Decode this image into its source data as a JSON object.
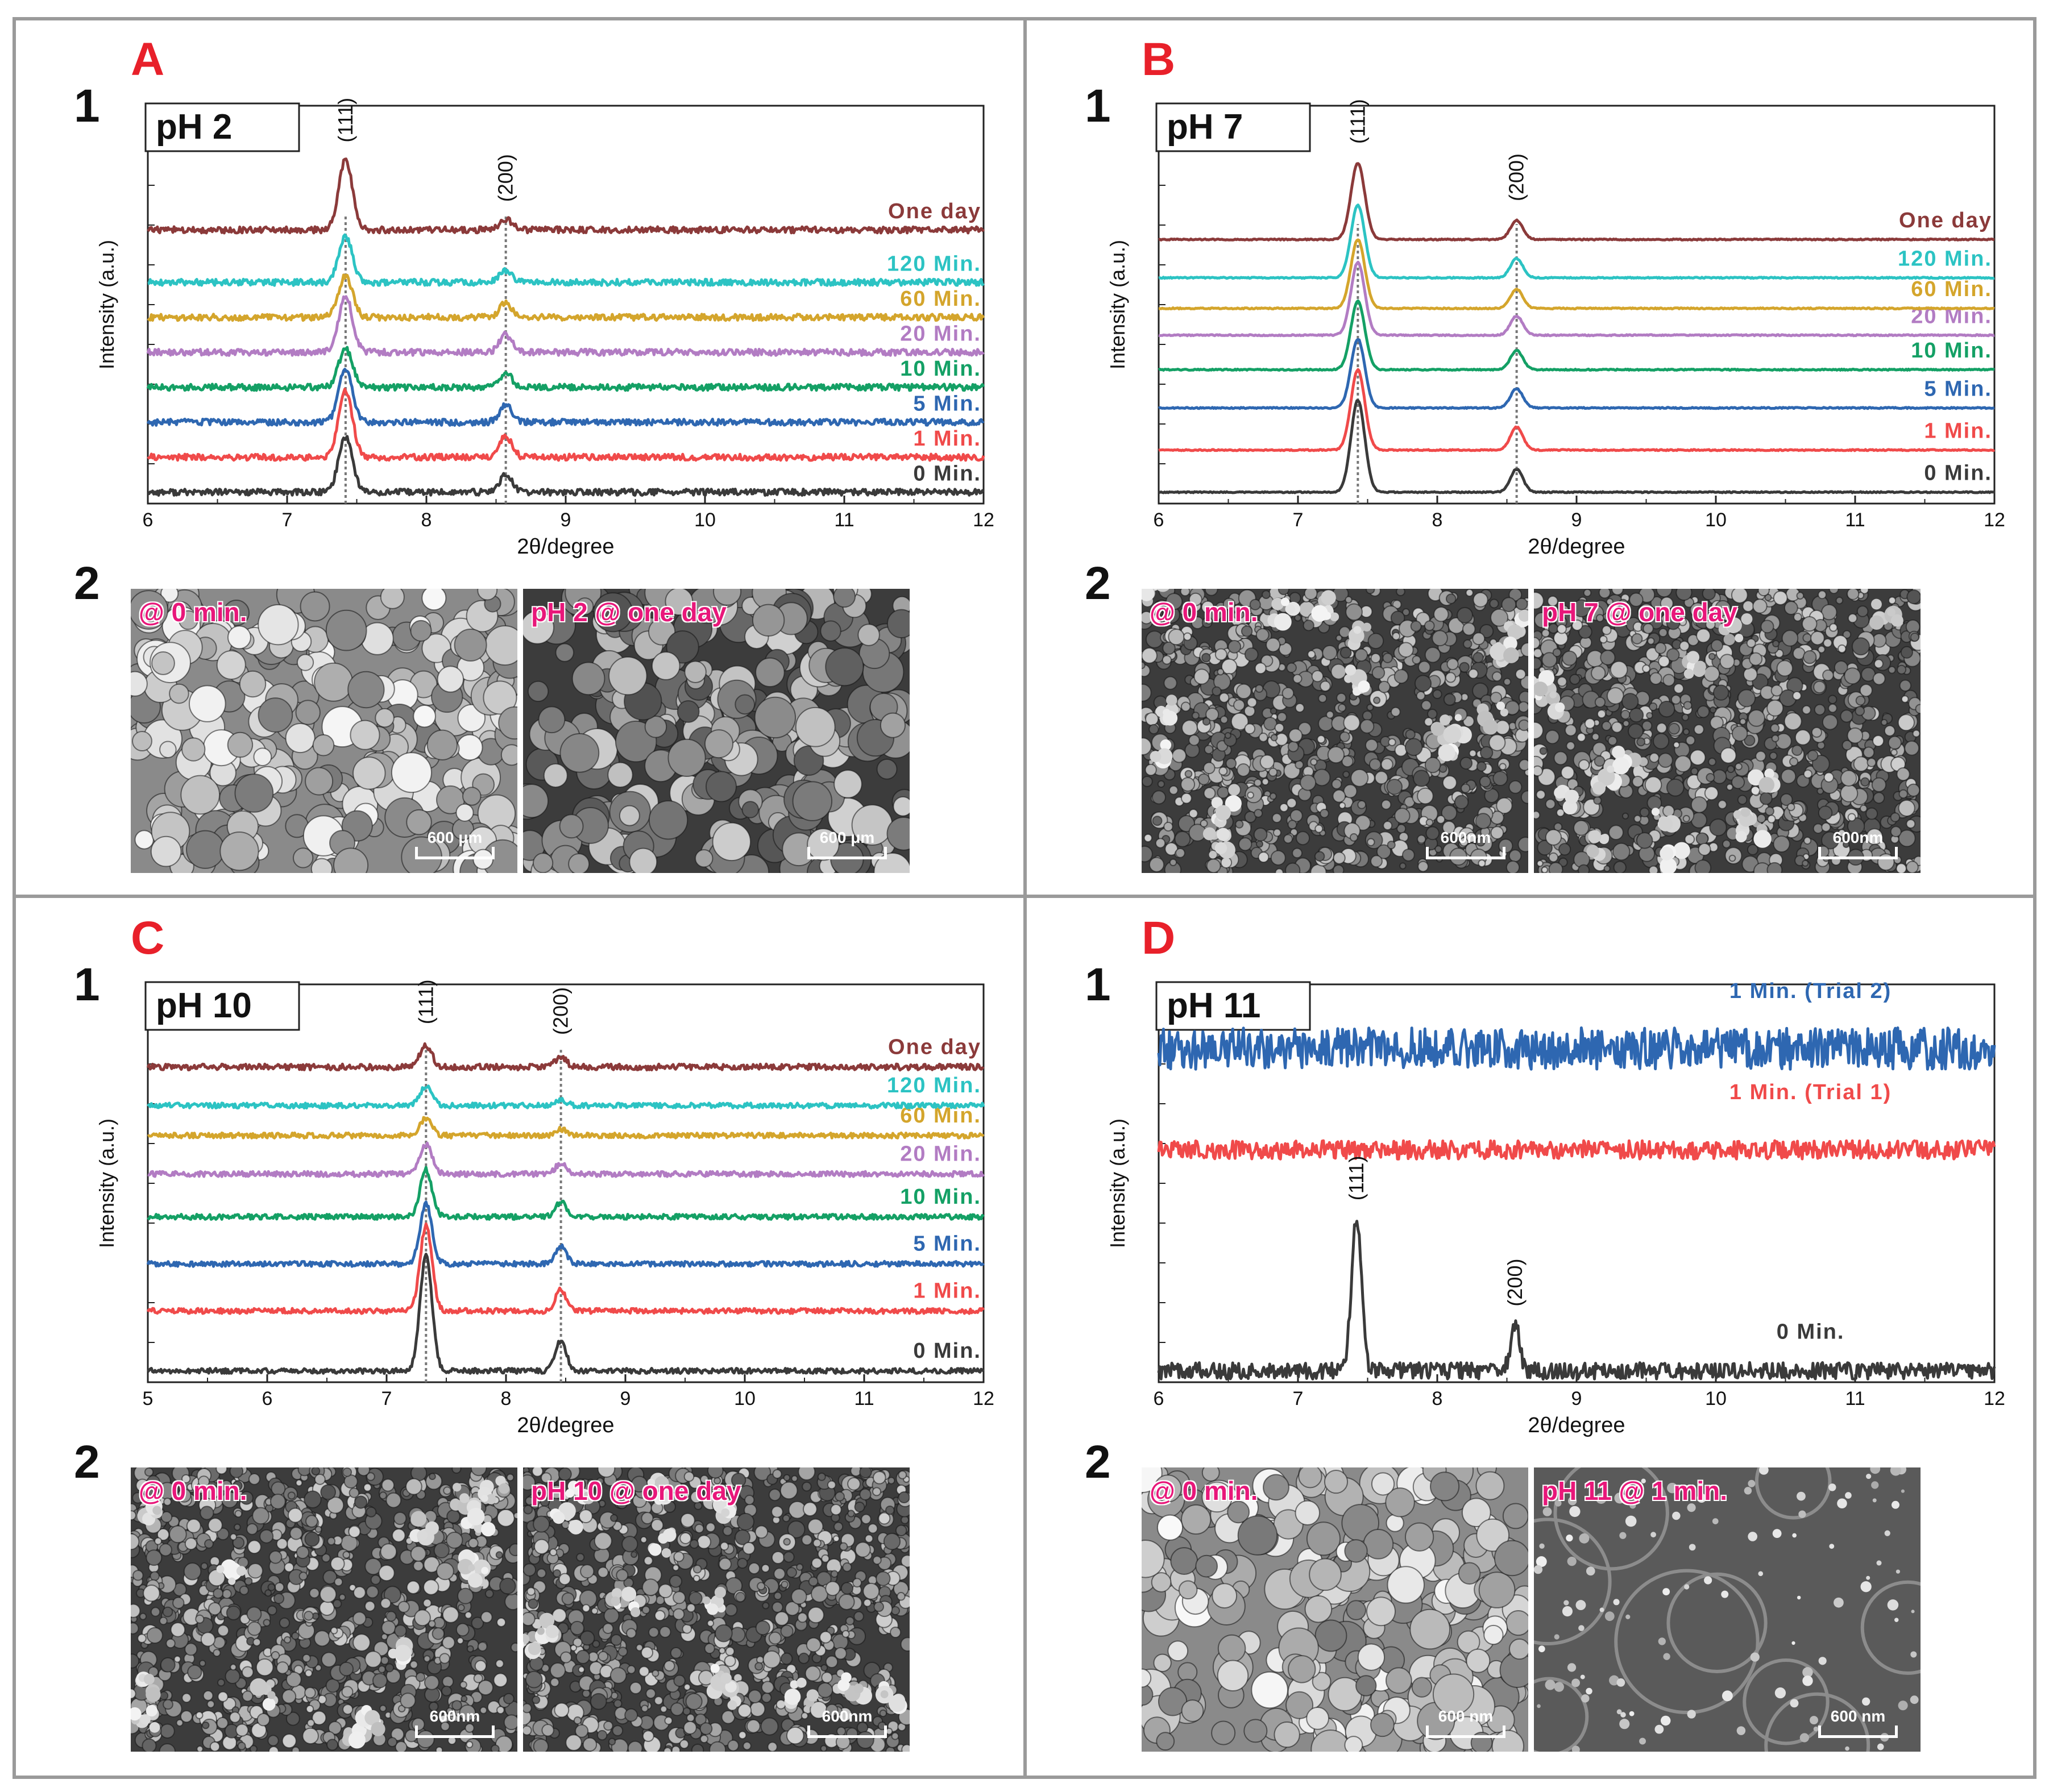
{
  "colors": {
    "panel_letter": "#e8202a",
    "sem_label": "#e8177a",
    "dashed_line": "#777777",
    "frame": "#9a9a9a"
  },
  "panels": [
    {
      "letter": "A",
      "row1": "1",
      "row2": "2",
      "sem": [
        {
          "label": "@ 0 min.",
          "scale": "600 μm",
          "texture": "coarse",
          "dark": false
        },
        {
          "label": "pH 2 @ one day",
          "scale": "600 μm",
          "texture": "coarse",
          "dark": true
        }
      ]
    },
    {
      "letter": "B",
      "row1": "1",
      "row2": "2",
      "sem": [
        {
          "label": "@ 0 min.",
          "scale": "600nm",
          "texture": "fine",
          "dark": true
        },
        {
          "label": "pH 7 @ one day",
          "scale": "600nm",
          "texture": "fine",
          "dark": true
        }
      ]
    },
    {
      "letter": "C",
      "row1": "1",
      "row2": "2",
      "sem": [
        {
          "label": "@ 0 min.",
          "scale": "600nm",
          "texture": "fine",
          "dark": true
        },
        {
          "label": "pH 10 @ one day",
          "scale": "600nm",
          "texture": "fine",
          "dark": true
        }
      ]
    },
    {
      "letter": "D",
      "row1": "1",
      "row2": "2",
      "sem": [
        {
          "label": "@ 0 min.",
          "scale": "600 nm",
          "texture": "coarse",
          "dark": false
        },
        {
          "label": "pH 11 @ 1 min.",
          "scale": "600 nm",
          "texture": "smooth",
          "dark": false
        }
      ]
    }
  ],
  "chart_data": [
    {
      "type": "line",
      "panel": "A",
      "title": "pH 2",
      "xlabel": "2θ/degree",
      "ylabel": "Intensity (a.u.)",
      "xlim": [
        6,
        12
      ],
      "xticks": [
        6,
        7,
        8,
        9,
        10,
        11,
        12
      ],
      "peak_positions": [
        7.42,
        8.57
      ],
      "peak_labels": [
        "(111)",
        "(200)"
      ],
      "series": [
        {
          "name": "0 Min.",
          "color": "#3a3a3a",
          "baseline": 0.0,
          "peaks": [
            1.6,
            0.5
          ],
          "noise": 0.09
        },
        {
          "name": "1 Min.",
          "color": "#f04a4a",
          "baseline": 1.0,
          "peaks": [
            1.9,
            0.6
          ],
          "noise": 0.09
        },
        {
          "name": "5 Min.",
          "color": "#2e67b1",
          "baseline": 2.0,
          "peaks": [
            1.5,
            0.5
          ],
          "noise": 0.09
        },
        {
          "name": "10 Min.",
          "color": "#14a065",
          "baseline": 3.0,
          "peaks": [
            1.1,
            0.4
          ],
          "noise": 0.09
        },
        {
          "name": "20 Min.",
          "color": "#b27cc3",
          "baseline": 4.0,
          "peaks": [
            1.6,
            0.5
          ],
          "noise": 0.09
        },
        {
          "name": "60 Min.",
          "color": "#d4a52c",
          "baseline": 5.0,
          "peaks": [
            1.2,
            0.4
          ],
          "noise": 0.09
        },
        {
          "name": "120 Min.",
          "color": "#2cc3c3",
          "baseline": 6.0,
          "peaks": [
            1.3,
            0.35
          ],
          "noise": 0.09
        },
        {
          "name": "One day",
          "color": "#8b3a3a",
          "baseline": 7.5,
          "peaks": [
            2.0,
            0.3
          ],
          "noise": 0.09
        }
      ]
    },
    {
      "type": "line",
      "panel": "B",
      "title": "pH 7",
      "xlabel": "2θ/degree",
      "ylabel": "Intensity (a.u.)",
      "xlim": [
        6,
        12
      ],
      "xticks": [
        6,
        7,
        8,
        9,
        10,
        11,
        12
      ],
      "peak_positions": [
        7.43,
        8.57
      ],
      "peak_labels": [
        "(111)",
        "(200)"
      ],
      "series": [
        {
          "name": "0 Min.",
          "color": "#3a3a3a",
          "baseline": 0.0,
          "peaks": [
            2.4,
            0.6
          ],
          "noise": 0.015
        },
        {
          "name": "1 Min.",
          "color": "#f04a4a",
          "baseline": 1.1,
          "peaks": [
            2.1,
            0.6
          ],
          "noise": 0.015
        },
        {
          "name": "5 Min.",
          "color": "#2e67b1",
          "baseline": 2.2,
          "peaks": [
            1.8,
            0.5
          ],
          "noise": 0.015
        },
        {
          "name": "10 Min.",
          "color": "#14a065",
          "baseline": 3.2,
          "peaks": [
            1.8,
            0.5
          ],
          "noise": 0.015
        },
        {
          "name": "20 Min.",
          "color": "#b27cc3",
          "baseline": 4.1,
          "peaks": [
            1.9,
            0.5
          ],
          "noise": 0.015
        },
        {
          "name": "60 Min.",
          "color": "#d4a52c",
          "baseline": 4.8,
          "peaks": [
            1.8,
            0.5
          ],
          "noise": 0.015
        },
        {
          "name": "120 Min.",
          "color": "#2cc3c3",
          "baseline": 5.6,
          "peaks": [
            1.9,
            0.5
          ],
          "noise": 0.015
        },
        {
          "name": "One day",
          "color": "#8b3a3a",
          "baseline": 6.6,
          "peaks": [
            2.0,
            0.5
          ],
          "noise": 0.015
        }
      ]
    },
    {
      "type": "line",
      "panel": "C",
      "title": "pH 10",
      "xlabel": "2θ/degree",
      "ylabel": "Intensity (a.u.)",
      "xlim": [
        5,
        12
      ],
      "xticks": [
        5,
        6,
        7,
        8,
        9,
        10,
        11,
        12
      ],
      "peak_positions": [
        7.33,
        8.46
      ],
      "peak_labels": [
        "(111)",
        "(200)"
      ],
      "series": [
        {
          "name": "0 Min.",
          "color": "#3a3a3a",
          "baseline": 0.0,
          "peaks": [
            2.7,
            0.7
          ],
          "noise": 0.06
        },
        {
          "name": "1 Min.",
          "color": "#f04a4a",
          "baseline": 1.4,
          "peaks": [
            2.0,
            0.5
          ],
          "noise": 0.06
        },
        {
          "name": "5 Min.",
          "color": "#2e67b1",
          "baseline": 2.5,
          "peaks": [
            1.4,
            0.4
          ],
          "noise": 0.06
        },
        {
          "name": "10 Min.",
          "color": "#14a065",
          "baseline": 3.6,
          "peaks": [
            1.1,
            0.35
          ],
          "noise": 0.06
        },
        {
          "name": "20 Min.",
          "color": "#b27cc3",
          "baseline": 4.6,
          "peaks": [
            0.7,
            0.25
          ],
          "noise": 0.06
        },
        {
          "name": "60 Min.",
          "color": "#d4a52c",
          "baseline": 5.5,
          "peaks": [
            0.4,
            0.15
          ],
          "noise": 0.06
        },
        {
          "name": "120 Min.",
          "color": "#2cc3c3",
          "baseline": 6.2,
          "peaks": [
            0.45,
            0.15
          ],
          "noise": 0.06
        },
        {
          "name": "One day",
          "color": "#8b3a3a",
          "baseline": 7.1,
          "peaks": [
            0.5,
            0.25
          ],
          "noise": 0.07
        }
      ]
    },
    {
      "type": "line",
      "panel": "D",
      "title": "pH 11",
      "xlabel": "2θ/degree",
      "ylabel": "Intensity (a.u.)",
      "xlim": [
        6,
        12
      ],
      "xticks": [
        6,
        7,
        8,
        9,
        10,
        11,
        12
      ],
      "peak_positions": [
        7.42,
        8.56
      ],
      "peak_labels": [
        "(111)",
        "(200)"
      ],
      "label_layout": "inline",
      "series": [
        {
          "name": "0 Min.",
          "color": "#3a3a3a",
          "baseline": 0.0,
          "peaks": [
            3.3,
            1.0
          ],
          "noise": 0.18
        },
        {
          "name": "1 Min. (Trial 1)",
          "color": "#f04a4a",
          "baseline": 4.8,
          "peaks": [
            0,
            0
          ],
          "noise": 0.2
        },
        {
          "name": "1 Min. (Trial 2)",
          "color": "#2e67b1",
          "baseline": 7.0,
          "peaks": [
            0,
            0
          ],
          "noise": 0.45
        }
      ]
    }
  ]
}
